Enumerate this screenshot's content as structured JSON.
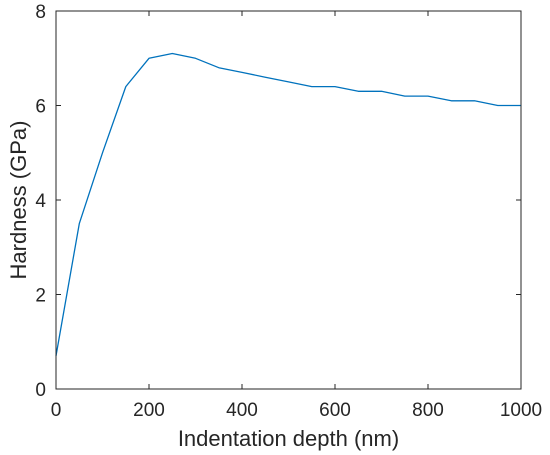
{
  "colors": {
    "line": "#0072BD",
    "axes": "#262626",
    "background": "#ffffff"
  },
  "chart_data": {
    "type": "line",
    "title": "",
    "xlabel": "Indentation depth (nm)",
    "ylabel": "Hardness (GPa)",
    "xlim": [
      0,
      1000
    ],
    "ylim": [
      0,
      8
    ],
    "xticks": [
      0,
      200,
      400,
      600,
      800,
      1000
    ],
    "yticks": [
      0,
      2,
      4,
      6,
      8
    ],
    "x_tick_labels": [
      "0",
      "200",
      "400",
      "600",
      "800",
      "1000"
    ],
    "y_tick_labels": [
      "0",
      "2",
      "4",
      "6",
      "8"
    ],
    "grid": false,
    "legend": "none",
    "series": [
      {
        "x": [
          0,
          50,
          100,
          150,
          200,
          250,
          300,
          350,
          400,
          450,
          500,
          550,
          600,
          650,
          700,
          750,
          800,
          850,
          900,
          950,
          1000
        ],
        "values": [
          0.7,
          3.5,
          5.0,
          6.4,
          7.0,
          7.1,
          7.0,
          6.8,
          6.7,
          6.6,
          6.5,
          6.4,
          6.4,
          6.3,
          6.3,
          6.2,
          6.2,
          6.1,
          6.1,
          6.0,
          6.0
        ]
      }
    ]
  }
}
